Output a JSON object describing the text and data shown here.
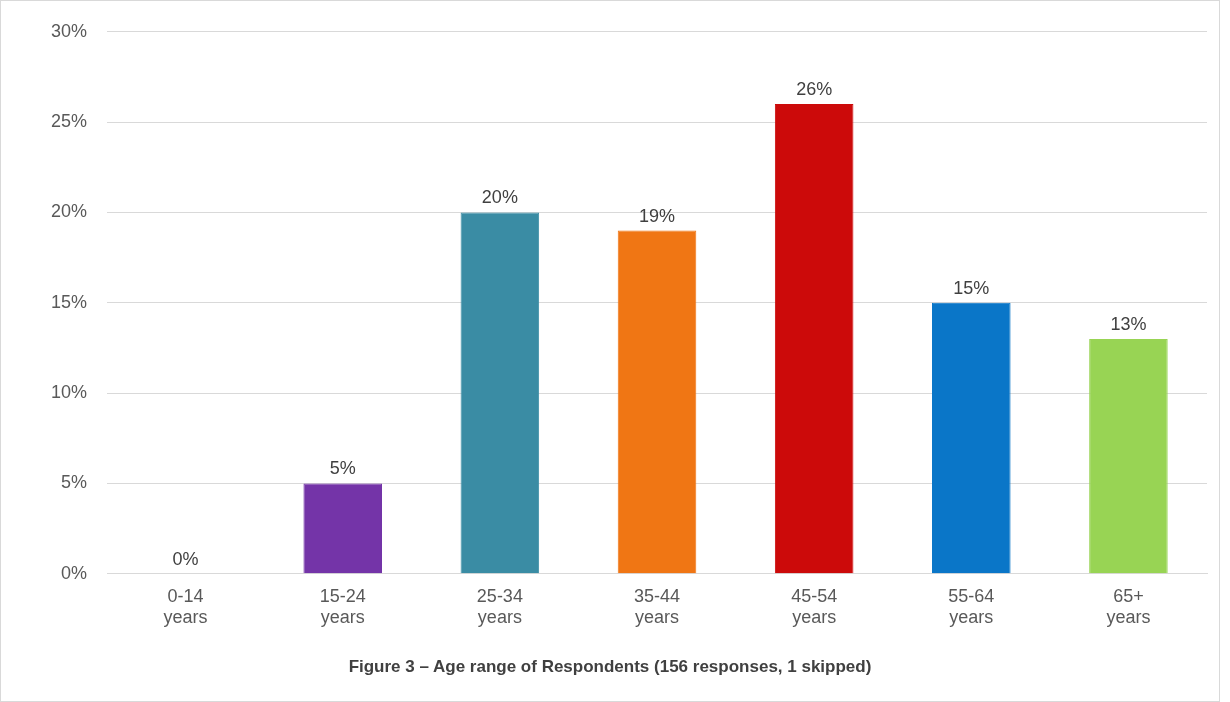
{
  "chart_data": {
    "type": "bar",
    "title": "Figure 3 – Age range of Respondents (156 responses, 1 skipped)",
    "categories": [
      "0-14 years",
      "15-24 years",
      "25-34 years",
      "35-44 years",
      "45-54 years",
      "55-64 years",
      "65+ years"
    ],
    "values": [
      0,
      5,
      20,
      19,
      26,
      15,
      13
    ],
    "colors": [
      "#4472c4",
      "#7434a8",
      "#3a8ca4",
      "#f07614",
      "#cc0a0a",
      "#0a76c8",
      "#98d454"
    ],
    "value_labels": [
      "0%",
      "5%",
      "20%",
      "19%",
      "26%",
      "15%",
      "13%"
    ],
    "ylim": [
      0,
      30
    ],
    "yticks": [
      {
        "value": 0,
        "label": "0%"
      },
      {
        "value": 5,
        "label": "5%"
      },
      {
        "value": 10,
        "label": "10%"
      },
      {
        "value": 15,
        "label": "15%"
      },
      {
        "value": 20,
        "label": "20%"
      },
      {
        "value": 25,
        "label": "25%"
      },
      {
        "value": 30,
        "label": "30%"
      }
    ],
    "grid": "y",
    "legend": false
  }
}
